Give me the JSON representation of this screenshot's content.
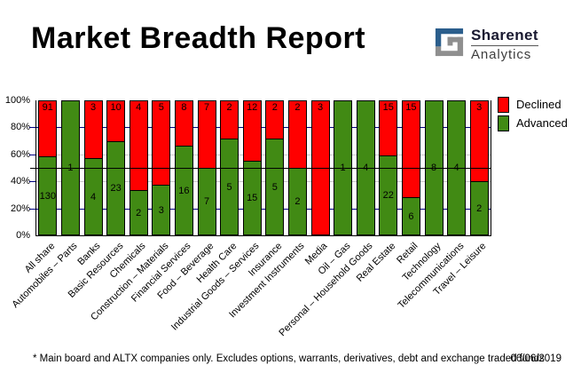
{
  "header": {
    "title": "Market Breadth Report",
    "logo": {
      "name": "Sharenet",
      "sub": "Analytics"
    }
  },
  "chart_data": {
    "type": "bar",
    "stacked": true,
    "stack_mode": "percent",
    "title": "Market Breadth Report",
    "xlabel": "",
    "ylabel": "",
    "ylim": [
      0,
      100
    ],
    "y_tick_labels": [
      "100%",
      "80%",
      "60%",
      "40%",
      "20%",
      "0%"
    ],
    "reference_line_percent": 50,
    "legend_position": "top-right",
    "grid": true,
    "categories": [
      "All share",
      "Automobiles – Parts",
      "Banks",
      "Basic Resources",
      "Chemicals",
      "Construction – Materials",
      "Financial Services",
      "Food – Beverage",
      "Health Care",
      "Industrial Goods – Services",
      "Insurance",
      "Investment Instruments",
      "Media",
      "Oil – Gas",
      "Personal – Household Goods",
      "Real Estate",
      "Retail",
      "Technology",
      "Telecommunications",
      "Travel – Leisure"
    ],
    "series": [
      {
        "name": "Declined",
        "color": "#ff0000",
        "values": [
          91,
          0,
          3,
          10,
          4,
          5,
          8,
          7,
          2,
          12,
          2,
          2,
          3,
          0,
          0,
          15,
          15,
          0,
          0,
          3
        ]
      },
      {
        "name": "Advanced",
        "color": "#418a14",
        "values": [
          130,
          1,
          4,
          23,
          2,
          3,
          16,
          7,
          5,
          15,
          5,
          2,
          0,
          1,
          4,
          22,
          6,
          8,
          4,
          2
        ]
      }
    ],
    "gridline_levels": [
      {
        "percent": 80,
        "color": "#000080"
      },
      {
        "percent": 60,
        "color": "#c8c8c8"
      },
      {
        "percent": 40,
        "color": "#c8c8c8"
      },
      {
        "percent": 20,
        "color": "#000080"
      }
    ]
  },
  "legend": {
    "items": [
      {
        "label": "Declined",
        "color": "#ff0000"
      },
      {
        "label": "Advanced",
        "color": "#418a14"
      }
    ]
  },
  "footer": {
    "note": "* Main board and ALTX companies only. Excludes options, warrants, derivatives, debt and exchange traded funds",
    "date": "06/06/2019"
  },
  "colors": {
    "declined": "#ff0000",
    "advanced": "#418a14",
    "grid_navy": "#000080",
    "grid_silver": "#c8c8c8",
    "reference_line": "#000000",
    "logo_blue": "#2b5e8c",
    "logo_gray": "#8f8f8f"
  }
}
